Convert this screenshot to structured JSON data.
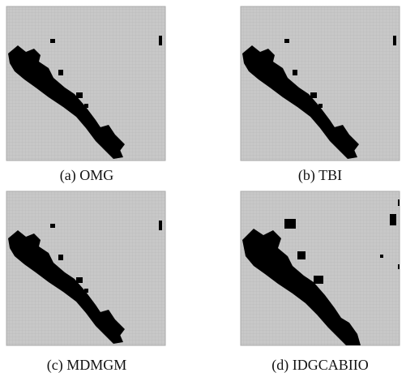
{
  "figure": {
    "panels": [
      {
        "caption": "(a) OMG"
      },
      {
        "caption": "(b) TBI"
      },
      {
        "caption": "(c) MDMGM"
      },
      {
        "caption": "(d) IDGCABIIO"
      }
    ]
  }
}
